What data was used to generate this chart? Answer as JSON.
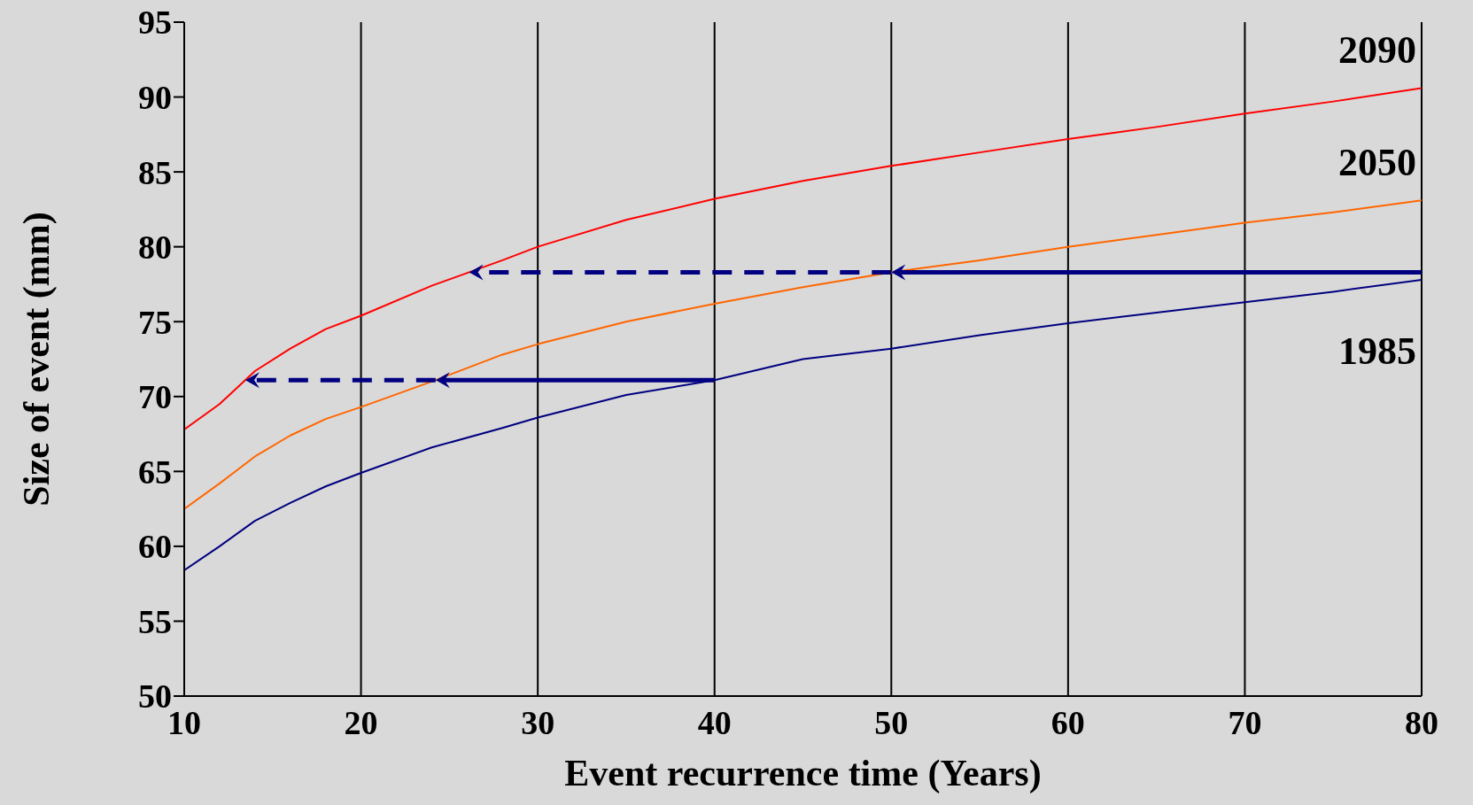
{
  "chart_data": {
    "type": "line",
    "xlabel": "Event recurrence time (Years)",
    "ylabel": "Size of event (mm)",
    "xlim": [
      10,
      80
    ],
    "xticks": [
      10,
      20,
      30,
      40,
      50,
      60,
      70,
      80
    ],
    "ylim": [
      50,
      95
    ],
    "yticks": [
      50,
      55,
      60,
      65,
      70,
      75,
      80,
      85,
      90,
      95
    ],
    "grid": "x",
    "marker": "none",
    "line_style": "solid",
    "x": [
      10,
      12,
      14,
      16,
      18,
      20,
      24,
      28,
      30,
      35,
      40,
      45,
      50,
      55,
      60,
      65,
      70,
      75,
      80
    ],
    "series": [
      {
        "name": "2090",
        "color": "#ff0000",
        "values": [
          67.8,
          69.5,
          71.7,
          73.2,
          74.5,
          75.4,
          77.4,
          79.1,
          80.0,
          81.8,
          83.2,
          84.4,
          85.4,
          86.3,
          87.2,
          88.0,
          88.9,
          89.7,
          90.6
        ]
      },
      {
        "name": "2050",
        "color": "#ff6600",
        "values": [
          62.5,
          64.2,
          66.0,
          67.4,
          68.5,
          69.3,
          71.0,
          72.8,
          73.5,
          75.0,
          76.2,
          77.3,
          78.3,
          79.1,
          80.0,
          80.8,
          81.6,
          82.3,
          83.1
        ]
      },
      {
        "name": "1985",
        "color": "#000080",
        "values": [
          58.4,
          60.0,
          61.7,
          62.9,
          64.0,
          64.9,
          66.6,
          67.9,
          68.6,
          70.1,
          71.1,
          72.5,
          73.2,
          74.1,
          74.9,
          75.6,
          76.3,
          77.0,
          77.8
        ]
      }
    ],
    "ref_lines": [
      {
        "axis": "y",
        "value": 78.3,
        "color": "#000080",
        "line_style": "solid"
      },
      {
        "axis": "y",
        "value": 71.1,
        "color": "#000080",
        "line_style": "solid"
      }
    ]
  }
}
